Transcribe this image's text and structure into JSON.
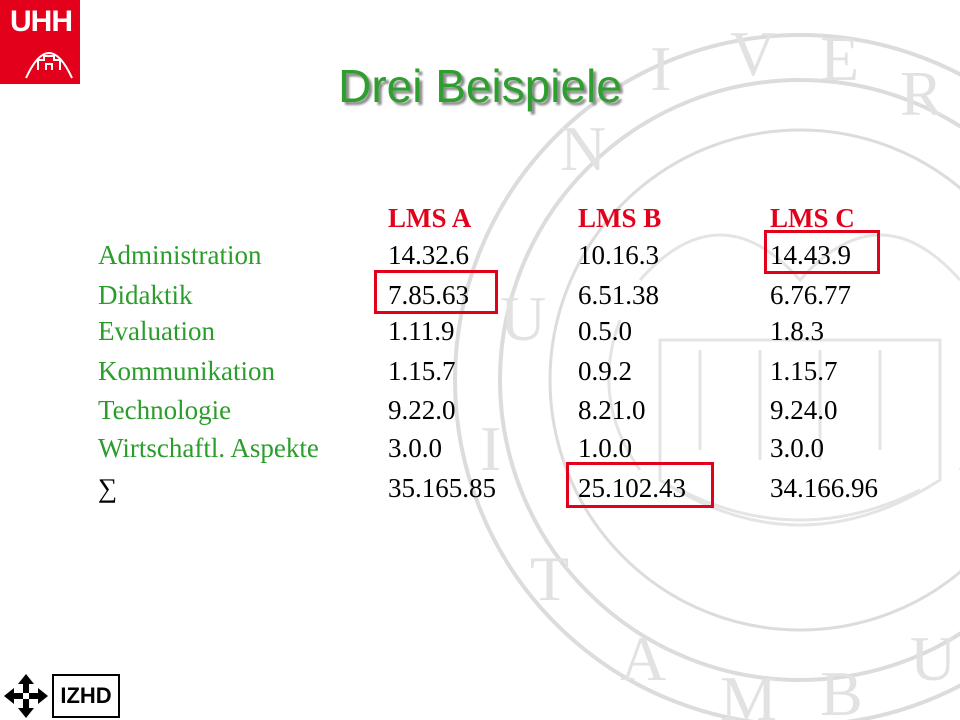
{
  "logo": {
    "text": "UHH"
  },
  "title": "Drei Beispiele",
  "table": {
    "headers": [
      "LMS A",
      "LMS B",
      "LMS C"
    ],
    "rows": [
      {
        "label": "Administration",
        "values": [
          "14.32.6",
          "10.16.3",
          "14.43.9"
        ]
      },
      {
        "label": "Didaktik",
        "values": [
          "7.85.63",
          "6.51.38",
          "6.76.77"
        ]
      },
      {
        "label": "Evaluation",
        "values": [
          "1.11.9",
          "0.5.0",
          "1.8.3"
        ]
      },
      {
        "label": "Kommunikation",
        "values": [
          "1.15.7",
          "0.9.2",
          "1.15.7"
        ]
      },
      {
        "label": "Technologie",
        "values": [
          "9.22.0",
          "8.21.0",
          "9.24.0"
        ]
      },
      {
        "label": "Wirtschaftl. Aspekte",
        "values": [
          "3.0.0",
          "1.0.0",
          "3.0.0"
        ]
      },
      {
        "label": "∑",
        "values": [
          "35.165.85",
          "25.102.43",
          "34.166.96"
        ]
      }
    ]
  },
  "footer": {
    "logo_text": "IZHD"
  },
  "colors": {
    "accent": "#e3001b",
    "label": "#2a9d2a",
    "title": "#2e9e2e"
  }
}
